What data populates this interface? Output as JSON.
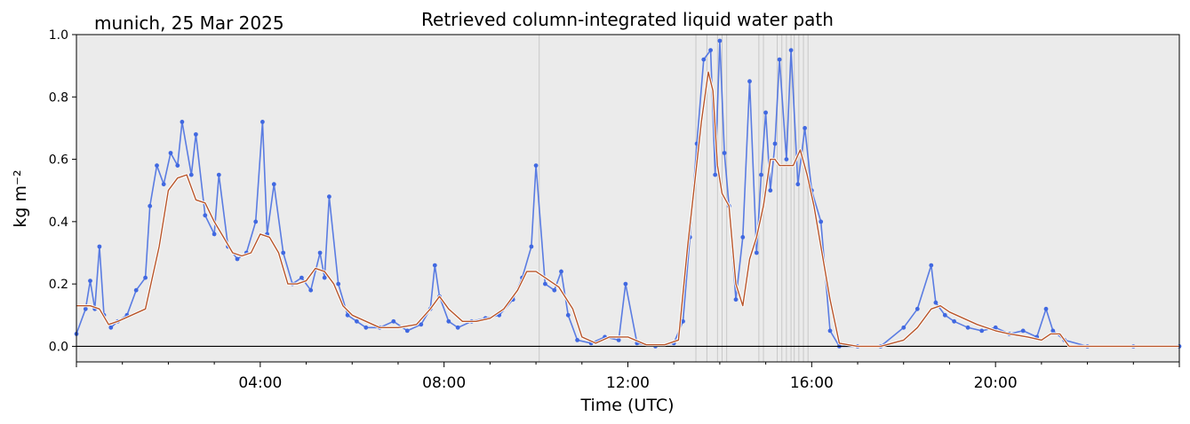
{
  "chart_data": {
    "type": "line",
    "location_label": "munich, 25 Mar 2025",
    "title": "Retrieved column-integrated liquid water path",
    "xlabel": "Time (UTC)",
    "ylabel": "kg m⁻²",
    "xlim_hours": [
      0,
      24
    ],
    "ylim": [
      -0.05,
      1.0
    ],
    "x_ticks": [
      {
        "hour": 4,
        "label": "04:00"
      },
      {
        "hour": 8,
        "label": "08:00"
      },
      {
        "hour": 12,
        "label": "12:00"
      },
      {
        "hour": 16,
        "label": "16:00"
      },
      {
        "hour": 20,
        "label": "20:00"
      }
    ],
    "y_ticks": [
      {
        "value": 0.0,
        "label": "0.0"
      },
      {
        "value": 0.2,
        "label": "0.2"
      },
      {
        "value": 0.4,
        "label": "0.4"
      },
      {
        "value": 0.6,
        "label": "0.6"
      },
      {
        "value": 0.8,
        "label": "0.8"
      },
      {
        "value": 1.0,
        "label": "1.0"
      }
    ],
    "zero_line": true,
    "background_color": "#ebebeb",
    "flag_line_color": "#c8c8c8",
    "flagged_hours": [
      10.07,
      13.48,
      13.72,
      13.95,
      14.05,
      14.15,
      14.85,
      14.95,
      15.25,
      15.35,
      15.45,
      15.55,
      15.62,
      15.72,
      15.82,
      15.92
    ],
    "series": [
      {
        "style": "scatter",
        "color": "#4169e1",
        "x_hours": [
          0.0,
          0.2,
          0.3,
          0.4,
          0.5,
          0.6,
          0.75,
          0.9,
          1.1,
          1.3,
          1.5,
          1.6,
          1.75,
          1.9,
          2.05,
          2.2,
          2.3,
          2.5,
          2.6,
          2.8,
          3.0,
          3.1,
          3.3,
          3.5,
          3.7,
          3.9,
          4.05,
          4.15,
          4.3,
          4.5,
          4.7,
          4.9,
          5.1,
          5.3,
          5.4,
          5.5,
          5.7,
          5.9,
          6.1,
          6.3,
          6.6,
          6.9,
          7.2,
          7.5,
          7.7,
          7.8,
          7.9,
          8.1,
          8.3,
          8.6,
          8.9,
          9.2,
          9.5,
          9.7,
          9.9,
          10.0,
          10.2,
          10.4,
          10.55,
          10.7,
          10.9,
          11.2,
          11.5,
          11.8,
          11.95,
          12.2,
          12.6,
          13.0,
          13.2,
          13.35,
          13.5,
          13.65,
          13.8,
          13.9,
          14.0,
          14.1,
          14.2,
          14.35,
          14.5,
          14.65,
          14.8,
          14.9,
          15.0,
          15.1,
          15.2,
          15.3,
          15.45,
          15.55,
          15.7,
          15.85,
          16.0,
          16.2,
          16.4,
          16.6,
          17.0,
          17.5,
          18.0,
          18.3,
          18.6,
          18.7,
          18.9,
          19.1,
          19.4,
          19.7,
          20.0,
          20.3,
          20.6,
          20.9,
          21.1,
          21.25,
          21.5,
          22.0,
          23.0,
          24.0
        ],
        "values": [
          0.04,
          0.12,
          0.21,
          0.12,
          0.32,
          0.1,
          0.06,
          0.08,
          0.1,
          0.18,
          0.22,
          0.45,
          0.58,
          0.52,
          0.62,
          0.58,
          0.72,
          0.55,
          0.68,
          0.42,
          0.36,
          0.55,
          0.32,
          0.28,
          0.3,
          0.4,
          0.72,
          0.36,
          0.52,
          0.3,
          0.2,
          0.22,
          0.18,
          0.3,
          0.22,
          0.48,
          0.2,
          0.1,
          0.08,
          0.06,
          0.06,
          0.08,
          0.05,
          0.07,
          0.12,
          0.26,
          0.16,
          0.08,
          0.06,
          0.08,
          0.09,
          0.1,
          0.15,
          0.22,
          0.32,
          0.58,
          0.2,
          0.18,
          0.24,
          0.1,
          0.02,
          0.01,
          0.03,
          0.02,
          0.2,
          0.01,
          0.0,
          0.01,
          0.08,
          0.35,
          0.65,
          0.92,
          0.95,
          0.55,
          0.98,
          0.62,
          0.45,
          0.15,
          0.35,
          0.85,
          0.3,
          0.55,
          0.75,
          0.5,
          0.65,
          0.92,
          0.6,
          0.95,
          0.52,
          0.7,
          0.5,
          0.4,
          0.05,
          0.0,
          0.0,
          0.0,
          0.06,
          0.12,
          0.26,
          0.14,
          0.1,
          0.08,
          0.06,
          0.05,
          0.06,
          0.04,
          0.05,
          0.03,
          0.12,
          0.05,
          0.02,
          0.0,
          0.0,
          0.0
        ]
      },
      {
        "style": "line",
        "color": "#b8552a",
        "x_hours": [
          0.0,
          0.3,
          0.5,
          0.7,
          0.9,
          1.2,
          1.5,
          1.8,
          2.0,
          2.2,
          2.4,
          2.6,
          2.8,
          3.0,
          3.2,
          3.4,
          3.6,
          3.8,
          4.0,
          4.2,
          4.4,
          4.6,
          4.8,
          5.0,
          5.2,
          5.4,
          5.6,
          5.8,
          6.0,
          6.3,
          6.6,
          7.0,
          7.4,
          7.7,
          7.9,
          8.1,
          8.4,
          8.7,
          9.0,
          9.3,
          9.6,
          9.8,
          10.0,
          10.2,
          10.5,
          10.8,
          11.0,
          11.3,
          11.6,
          12.0,
          12.4,
          12.8,
          13.1,
          13.3,
          13.45,
          13.6,
          13.75,
          13.85,
          13.95,
          14.05,
          14.2,
          14.35,
          14.5,
          14.65,
          14.8,
          14.95,
          15.1,
          15.2,
          15.3,
          15.45,
          15.6,
          15.75,
          15.9,
          16.05,
          16.2,
          16.4,
          16.6,
          17.0,
          17.5,
          18.0,
          18.3,
          18.6,
          18.8,
          19.0,
          19.3,
          19.6,
          20.0,
          20.3,
          20.7,
          21.0,
          21.2,
          21.4,
          21.6,
          22.0,
          22.5,
          23.0,
          24.0
        ],
        "values": [
          0.13,
          0.13,
          0.12,
          0.07,
          0.08,
          0.1,
          0.12,
          0.32,
          0.5,
          0.54,
          0.55,
          0.47,
          0.46,
          0.4,
          0.35,
          0.3,
          0.29,
          0.3,
          0.36,
          0.35,
          0.3,
          0.2,
          0.2,
          0.21,
          0.25,
          0.24,
          0.2,
          0.13,
          0.1,
          0.08,
          0.06,
          0.06,
          0.07,
          0.12,
          0.16,
          0.12,
          0.08,
          0.08,
          0.09,
          0.12,
          0.18,
          0.24,
          0.24,
          0.22,
          0.19,
          0.12,
          0.03,
          0.01,
          0.03,
          0.03,
          0.005,
          0.005,
          0.02,
          0.32,
          0.52,
          0.72,
          0.88,
          0.82,
          0.58,
          0.49,
          0.45,
          0.2,
          0.13,
          0.28,
          0.35,
          0.45,
          0.6,
          0.6,
          0.58,
          0.58,
          0.58,
          0.63,
          0.55,
          0.45,
          0.32,
          0.15,
          0.01,
          0.0,
          0.0,
          0.02,
          0.06,
          0.12,
          0.13,
          0.11,
          0.09,
          0.07,
          0.05,
          0.04,
          0.03,
          0.02,
          0.04,
          0.04,
          0.0,
          0.0,
          0.0,
          0.0,
          0.0
        ]
      }
    ]
  }
}
